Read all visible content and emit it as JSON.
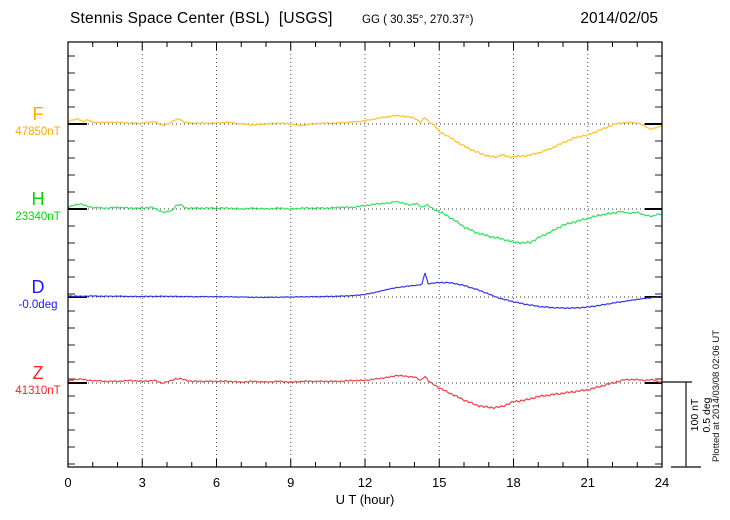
{
  "header": {
    "title": "Stennis Space Center (BSL)  [USGS]",
    "coords": "GG ( 30.35°, 270.37°)",
    "date": "2014/02/05"
  },
  "footer_note": "Plotted at 2014/03/08 02:06 UT",
  "chart_data": {
    "type": "line",
    "title": "Stennis Space Center (BSL) [USGS] magnetogram 2014/02/05",
    "xlabel": "U T (hour)",
    "x_range": [
      0,
      24
    ],
    "x_ticks": [
      0,
      3,
      6,
      9,
      12,
      15,
      18,
      21,
      24
    ],
    "x_minor_tick_hours": 1,
    "grid": "dotted vertical lines at 3-hour marks; dotted horizontal baseline per channel",
    "scale_bar": {
      "nT_label": "100 nT",
      "deg_label": "0.5 deg",
      "nT": 100,
      "deg": 0.5
    },
    "series": [
      {
        "name": "F",
        "baseline_label": "47850nT",
        "baseline_value": 47850,
        "unit": "nT",
        "label_color": "#ffaa00",
        "trace_color": "#ffc02a",
        "points_hour_offset": [
          [
            0,
            3
          ],
          [
            0.2,
            5
          ],
          [
            0.4,
            6
          ],
          [
            0.6,
            3
          ],
          [
            0.8,
            5
          ],
          [
            1,
            2
          ],
          [
            1.5,
            2
          ],
          [
            2,
            2
          ],
          [
            2.5,
            1
          ],
          [
            3,
            1
          ],
          [
            3.5,
            3
          ],
          [
            3.8,
            -2
          ],
          [
            4.1,
            1
          ],
          [
            4.35,
            5
          ],
          [
            4.5,
            6
          ],
          [
            4.7,
            2
          ],
          [
            5,
            1
          ],
          [
            5.5,
            1
          ],
          [
            6,
            1
          ],
          [
            6.5,
            2
          ],
          [
            7,
            0
          ],
          [
            7.5,
            -1
          ],
          [
            8,
            0
          ],
          [
            8.5,
            1
          ],
          [
            9,
            0
          ],
          [
            9.4,
            -2
          ],
          [
            9.8,
            0
          ],
          [
            10.3,
            1
          ],
          [
            10.8,
            1
          ],
          [
            11.3,
            2
          ],
          [
            11.8,
            3
          ],
          [
            12.2,
            5
          ],
          [
            12.6,
            7
          ],
          [
            13,
            9
          ],
          [
            13.3,
            10
          ],
          [
            13.6,
            9
          ],
          [
            14,
            7
          ],
          [
            14.25,
            2
          ],
          [
            14.42,
            8
          ],
          [
            14.6,
            2
          ],
          [
            14.8,
            -1
          ],
          [
            15,
            -9
          ],
          [
            15.5,
            -17
          ],
          [
            16,
            -26
          ],
          [
            16.5,
            -33
          ],
          [
            17,
            -38
          ],
          [
            17.3,
            -39
          ],
          [
            17.5,
            -36
          ],
          [
            17.8,
            -39
          ],
          [
            18.2,
            -38
          ],
          [
            18.6,
            -37
          ],
          [
            19,
            -34
          ],
          [
            19.5,
            -29
          ],
          [
            20,
            -22
          ],
          [
            20.5,
            -16
          ],
          [
            21,
            -13
          ],
          [
            21.5,
            -7
          ],
          [
            22,
            -1
          ],
          [
            22.3,
            1
          ],
          [
            22.7,
            2
          ],
          [
            23,
            1
          ],
          [
            23.3,
            -2
          ],
          [
            23.5,
            -6
          ],
          [
            23.7,
            -5
          ],
          [
            24,
            -2
          ]
        ]
      },
      {
        "name": "H",
        "baseline_label": "23340nT",
        "baseline_value": 23340,
        "unit": "nT",
        "label_color": "#00dd00",
        "trace_color": "#35df5d",
        "points_hour_offset": [
          [
            0,
            2
          ],
          [
            0.3,
            5
          ],
          [
            0.5,
            6
          ],
          [
            0.8,
            3
          ],
          [
            1,
            2
          ],
          [
            1.5,
            1
          ],
          [
            2,
            2
          ],
          [
            2.5,
            1
          ],
          [
            3,
            1
          ],
          [
            3.4,
            2
          ],
          [
            3.7,
            -2
          ],
          [
            3.9,
            -4
          ],
          [
            4.2,
            -2
          ],
          [
            4.35,
            4
          ],
          [
            4.55,
            5
          ],
          [
            4.75,
            1
          ],
          [
            5,
            1
          ],
          [
            5.5,
            1
          ],
          [
            6,
            1
          ],
          [
            6.5,
            1
          ],
          [
            7,
            0
          ],
          [
            7.5,
            1
          ],
          [
            8,
            0
          ],
          [
            8.5,
            1
          ],
          [
            9,
            0
          ],
          [
            9.5,
            1
          ],
          [
            10,
            1
          ],
          [
            10.5,
            1
          ],
          [
            11,
            2
          ],
          [
            11.5,
            2
          ],
          [
            12,
            4
          ],
          [
            12.5,
            6
          ],
          [
            13,
            7
          ],
          [
            13.2,
            9
          ],
          [
            13.5,
            7
          ],
          [
            13.8,
            5
          ],
          [
            14.1,
            6
          ],
          [
            14.3,
            2
          ],
          [
            14.5,
            5
          ],
          [
            14.7,
            1
          ],
          [
            14.9,
            -2
          ],
          [
            15.2,
            -6
          ],
          [
            15.6,
            -13
          ],
          [
            16,
            -21
          ],
          [
            16.5,
            -28
          ],
          [
            17,
            -32
          ],
          [
            17.5,
            -35
          ],
          [
            18,
            -39
          ],
          [
            18.4,
            -40
          ],
          [
            18.7,
            -39
          ],
          [
            19,
            -34
          ],
          [
            19.5,
            -27
          ],
          [
            20,
            -19
          ],
          [
            20.5,
            -15
          ],
          [
            21,
            -11
          ],
          [
            21.5,
            -7
          ],
          [
            22,
            -5
          ],
          [
            22.3,
            -3
          ],
          [
            22.7,
            -5
          ],
          [
            23,
            -4
          ],
          [
            23.3,
            -7
          ],
          [
            23.6,
            -9
          ],
          [
            23.8,
            -6
          ],
          [
            24,
            -6
          ]
        ]
      },
      {
        "name": "D",
        "baseline_label": "-0.0deg",
        "baseline_value": -0.0,
        "unit": "deg",
        "label_color": "#1a1aff",
        "trace_color": "#3333dd",
        "points_hour_offset": [
          [
            0,
            0.006
          ],
          [
            0.5,
            0.004
          ],
          [
            1,
            0.006
          ],
          [
            1.5,
            0.004
          ],
          [
            2,
            0.005
          ],
          [
            2.5,
            0.003
          ],
          [
            3,
            0.003
          ],
          [
            3.5,
            0.004
          ],
          [
            4,
            0.004
          ],
          [
            4.5,
            0.003
          ],
          [
            5,
            0.002
          ],
          [
            5.5,
            0.002
          ],
          [
            6,
            0.002
          ],
          [
            6.5,
            0.001
          ],
          [
            7,
            0
          ],
          [
            7.5,
            -0.002
          ],
          [
            8,
            -0.002
          ],
          [
            8.5,
            -0.001
          ],
          [
            9,
            0
          ],
          [
            9.5,
            0.001
          ],
          [
            10,
            0.002
          ],
          [
            10.5,
            0.003
          ],
          [
            11,
            0.005
          ],
          [
            11.5,
            0.008
          ],
          [
            12,
            0.015
          ],
          [
            12.5,
            0.03
          ],
          [
            13,
            0.048
          ],
          [
            13.5,
            0.06
          ],
          [
            14,
            0.068
          ],
          [
            14.3,
            0.073
          ],
          [
            14.42,
            0.145
          ],
          [
            14.55,
            0.078
          ],
          [
            14.8,
            0.082
          ],
          [
            15,
            0.085
          ],
          [
            15.3,
            0.085
          ],
          [
            15.6,
            0.08
          ],
          [
            16,
            0.068
          ],
          [
            16.5,
            0.045
          ],
          [
            17,
            0.018
          ],
          [
            17.2,
            0.005
          ],
          [
            17.5,
            -0.01
          ],
          [
            18,
            -0.028
          ],
          [
            18.5,
            -0.043
          ],
          [
            19,
            -0.055
          ],
          [
            19.5,
            -0.062
          ],
          [
            20,
            -0.065
          ],
          [
            20.5,
            -0.065
          ],
          [
            21,
            -0.059
          ],
          [
            21.5,
            -0.049
          ],
          [
            22,
            -0.036
          ],
          [
            22.5,
            -0.025
          ],
          [
            23,
            -0.014
          ],
          [
            23.5,
            -0.005
          ],
          [
            24,
            0.001
          ]
        ]
      },
      {
        "name": "Z",
        "baseline_label": "41310nT",
        "baseline_value": 41310,
        "unit": "nT",
        "label_color": "#ff2222",
        "trace_color": "#ee4343",
        "points_hour_offset": [
          [
            0,
            2
          ],
          [
            0.3,
            4
          ],
          [
            0.5,
            5
          ],
          [
            0.8,
            3
          ],
          [
            1,
            3
          ],
          [
            1.5,
            2
          ],
          [
            2,
            2
          ],
          [
            2.5,
            3
          ],
          [
            3,
            2
          ],
          [
            3.5,
            3
          ],
          [
            3.8,
            0
          ],
          [
            4.1,
            2
          ],
          [
            4.35,
            5
          ],
          [
            4.55,
            5
          ],
          [
            4.8,
            3
          ],
          [
            5,
            2
          ],
          [
            5.5,
            2
          ],
          [
            6,
            2
          ],
          [
            6.5,
            2
          ],
          [
            7,
            1
          ],
          [
            7.5,
            2
          ],
          [
            8,
            1
          ],
          [
            8.5,
            2
          ],
          [
            9,
            1
          ],
          [
            9.5,
            2
          ],
          [
            10,
            2
          ],
          [
            10.5,
            2
          ],
          [
            11,
            2
          ],
          [
            11.5,
            3
          ],
          [
            12,
            3
          ],
          [
            12.5,
            5
          ],
          [
            13,
            7
          ],
          [
            13.3,
            9
          ],
          [
            13.6,
            8
          ],
          [
            14,
            7
          ],
          [
            14.25,
            3
          ],
          [
            14.42,
            8
          ],
          [
            14.6,
            1
          ],
          [
            14.8,
            -2
          ],
          [
            15,
            -6
          ],
          [
            15.5,
            -13
          ],
          [
            16,
            -20
          ],
          [
            16.5,
            -26
          ],
          [
            16.8,
            -28
          ],
          [
            17.2,
            -29
          ],
          [
            17.5,
            -28
          ],
          [
            18,
            -22
          ],
          [
            18.5,
            -20
          ],
          [
            19,
            -16
          ],
          [
            19.5,
            -14
          ],
          [
            20,
            -12
          ],
          [
            20.5,
            -10
          ],
          [
            21,
            -8
          ],
          [
            21.5,
            -4
          ],
          [
            22,
            0
          ],
          [
            22.5,
            4
          ],
          [
            23,
            4
          ],
          [
            23.3,
            3
          ],
          [
            23.6,
            4
          ],
          [
            23.8,
            2
          ],
          [
            24,
            1
          ]
        ]
      }
    ]
  }
}
